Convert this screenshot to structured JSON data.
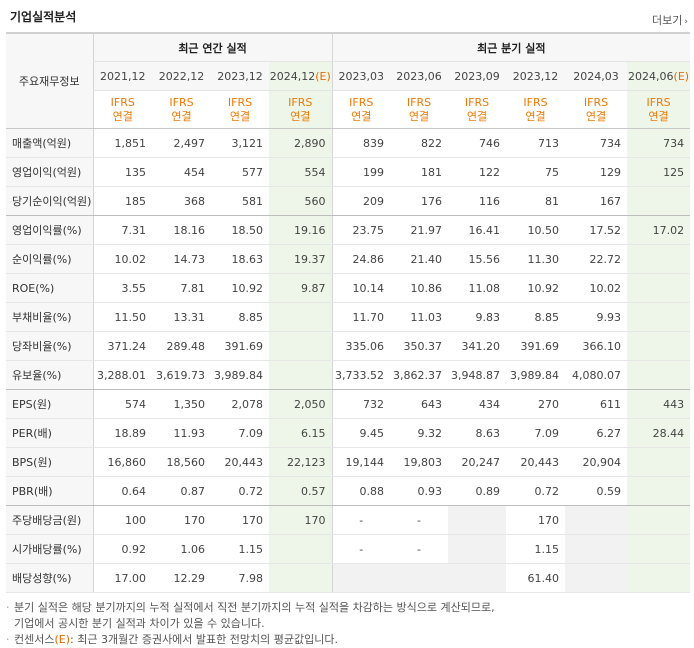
{
  "header": {
    "title": "기업실적분석",
    "more_label": "더보기"
  },
  "table": {
    "corner_label": "주요재무정보",
    "groups": {
      "annual": "최근 연간 실적",
      "quarterly": "최근 분기 실적"
    },
    "periods": [
      "2021,12",
      "2022,12",
      "2023,12",
      "2024,12",
      "2023,03",
      "2023,06",
      "2023,09",
      "2023,12",
      "2024,03",
      "2024,06"
    ],
    "estimate_suffix": "(E)",
    "ifrs_line1": "IFRS",
    "ifrs_line2": "연결",
    "rows": [
      {
        "label": "매출액(억원)",
        "values": [
          "1,851",
          "2,497",
          "3,121",
          "2,890",
          "839",
          "822",
          "746",
          "713",
          "734",
          "734"
        ]
      },
      {
        "label": "영업이익(억원)",
        "values": [
          "135",
          "454",
          "577",
          "554",
          "199",
          "181",
          "122",
          "75",
          "129",
          "125"
        ]
      },
      {
        "label": "당기순이익(억원)",
        "values": [
          "185",
          "368",
          "581",
          "560",
          "209",
          "176",
          "116",
          "81",
          "167",
          ""
        ]
      },
      {
        "label": "영업이익률(%)",
        "values": [
          "7.31",
          "18.16",
          "18.50",
          "19.16",
          "23.75",
          "21.97",
          "16.41",
          "10.50",
          "17.52",
          "17.02"
        ]
      },
      {
        "label": "순이익률(%)",
        "values": [
          "10.02",
          "14.73",
          "18.63",
          "19.37",
          "24.86",
          "21.40",
          "15.56",
          "11.30",
          "22.72",
          ""
        ]
      },
      {
        "label": "ROE(%)",
        "values": [
          "3.55",
          "7.81",
          "10.92",
          "9.87",
          "10.14",
          "10.86",
          "11.08",
          "10.92",
          "10.02",
          ""
        ]
      },
      {
        "label": "부채비율(%)",
        "values": [
          "11.50",
          "13.31",
          "8.85",
          "",
          "11.70",
          "11.03",
          "9.83",
          "8.85",
          "9.93",
          ""
        ]
      },
      {
        "label": "당좌비율(%)",
        "values": [
          "371.24",
          "289.48",
          "391.69",
          "",
          "335.06",
          "350.37",
          "341.20",
          "391.69",
          "366.10",
          ""
        ]
      },
      {
        "label": "유보율(%)",
        "values": [
          "3,288.01",
          "3,619.73",
          "3,989.84",
          "",
          "3,733.52",
          "3,862.37",
          "3,948.87",
          "3,989.84",
          "4,080.07",
          ""
        ]
      },
      {
        "label": "EPS(원)",
        "values": [
          "574",
          "1,350",
          "2,078",
          "2,050",
          "732",
          "643",
          "434",
          "270",
          "611",
          "443"
        ]
      },
      {
        "label": "PER(배)",
        "values": [
          "18.89",
          "11.93",
          "7.09",
          "6.15",
          "9.45",
          "9.32",
          "8.63",
          "7.09",
          "6.27",
          "28.44"
        ]
      },
      {
        "label": "BPS(원)",
        "values": [
          "16,860",
          "18,560",
          "20,443",
          "22,123",
          "19,144",
          "19,803",
          "20,247",
          "20,443",
          "20,904",
          ""
        ]
      },
      {
        "label": "PBR(배)",
        "values": [
          "0.64",
          "0.87",
          "0.72",
          "0.57",
          "0.88",
          "0.93",
          "0.89",
          "0.72",
          "0.59",
          ""
        ]
      },
      {
        "label": "주당배당금(원)",
        "values": [
          "100",
          "170",
          "170",
          "170",
          "-",
          "-",
          "",
          "170",
          "",
          ""
        ]
      },
      {
        "label": "시가배당률(%)",
        "values": [
          "0.92",
          "1.06",
          "1.15",
          "",
          "-",
          "-",
          "",
          "1.15",
          "",
          ""
        ]
      },
      {
        "label": "배당성향(%)",
        "values": [
          "17.00",
          "12.29",
          "7.98",
          "",
          "",
          "",
          "",
          "61.40",
          "",
          ""
        ]
      }
    ]
  },
  "notes": {
    "line1": "분기 실적은 해당 분기까지의 누적 실적에서 직전 분기까지의 누적 실적을 차감하는 방식으로 계산되므로,",
    "line2": "기업에서 공시한 분기 실적과 차이가 있을 수 있습니다.",
    "line3_prefix": "컨센서스",
    "line3_e": "(E)",
    "line3_rest": ": 최근 3개월간 증권사에서 발표한 전망치의 평균값입니다."
  }
}
